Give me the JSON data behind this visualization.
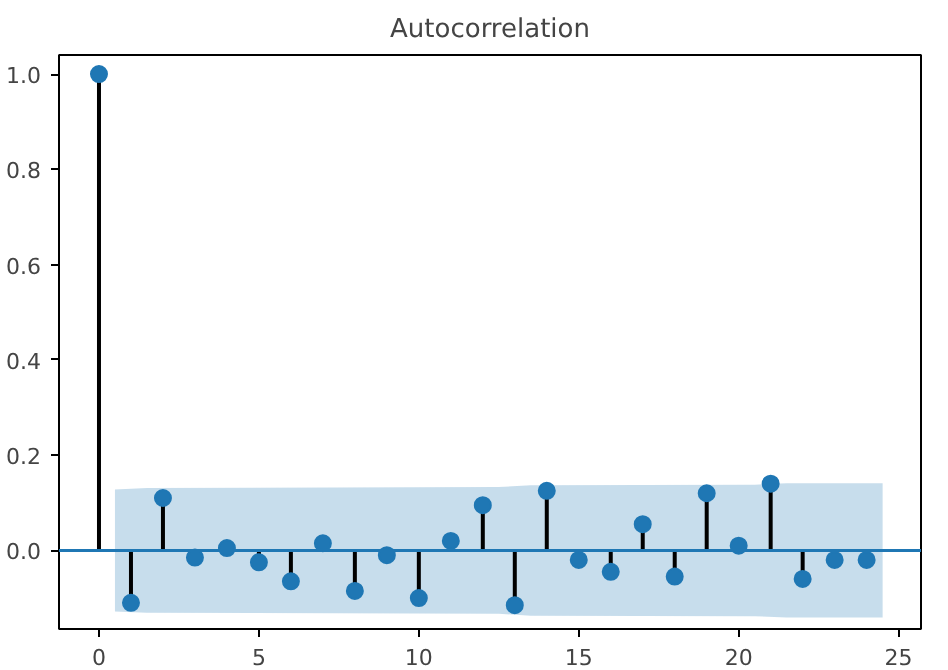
{
  "chart_data": {
    "type": "lollipop",
    "title": "Autocorrelation",
    "xlim": [
      -1.25,
      25.7
    ],
    "ylim": [
      -0.165,
      1.04
    ],
    "xticks": [
      0,
      5,
      10,
      15,
      20,
      25
    ],
    "yticks": [
      {
        "value": 0,
        "label": "0.0"
      },
      {
        "value": 0.2,
        "label": "0.2"
      },
      {
        "value": 0.4,
        "label": "0.4"
      },
      {
        "value": 0.6,
        "label": "0.6"
      },
      {
        "value": 0.8,
        "label": "0.8"
      },
      {
        "value": 1,
        "label": "1.0"
      }
    ],
    "series": [
      {
        "color": "#1f77b4",
        "marker": "circle",
        "x": [
          0,
          1,
          2,
          3,
          4,
          5,
          6,
          7,
          8,
          9,
          10,
          11,
          12,
          13,
          14,
          15,
          16,
          17,
          18,
          19,
          20,
          21,
          22,
          23,
          24
        ],
        "values": [
          1.0,
          -0.11,
          0.11,
          -0.015,
          0.005,
          -0.025,
          -0.065,
          0.015,
          -0.085,
          -0.01,
          -0.1,
          0.02,
          0.095,
          -0.115,
          0.125,
          -0.02,
          -0.045,
          0.055,
          -0.055,
          0.12,
          0.01,
          0.14,
          -0.06,
          -0.02,
          -0.02
        ]
      },
      {
        "type": "line",
        "color": "#1f77b4",
        "marker": "none",
        "x": [
          -1.25,
          0.5,
          1.5,
          12.5,
          13.5,
          20.5,
          21.5,
          24.5,
          25.7
        ],
        "values": [
          0,
          0,
          0,
          0,
          0,
          0,
          0,
          0,
          0
        ],
        "lower": [
          null,
          -0.128,
          -0.131,
          -0.133,
          -0.137,
          -0.138,
          -0.141,
          -0.141,
          null
        ],
        "upper": [
          null,
          0.128,
          0.131,
          0.133,
          0.137,
          0.138,
          0.141,
          0.141,
          null
        ]
      }
    ]
  }
}
